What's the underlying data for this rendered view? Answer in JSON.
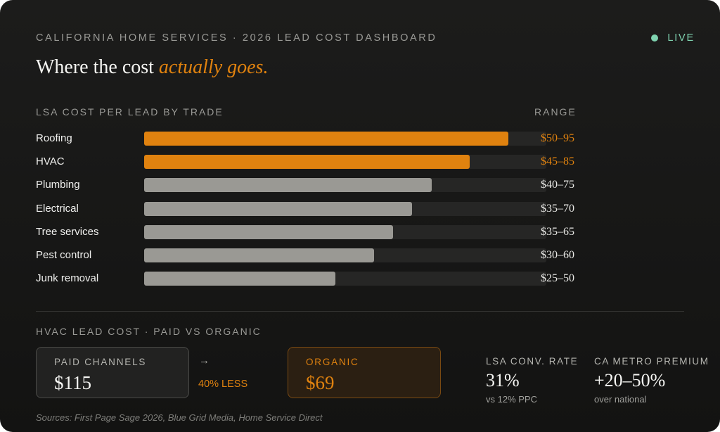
{
  "header": {
    "eyebrow": "CALIFORNIA HOME SERVICES · 2026 LEAD COST DASHBOARD",
    "live_label": "LIVE",
    "headline_plain": "Where the cost ",
    "headline_emphasis": "actually goes."
  },
  "colors": {
    "accent": "#e0820f",
    "neutral_bar": "#9a9994",
    "live": "#7fd3b0"
  },
  "chart_data": {
    "type": "bar",
    "orientation": "horizontal",
    "title": "LSA COST PER LEAD BY TRADE",
    "value_column_label": "RANGE",
    "categories": [
      "Roofing",
      "HVAC",
      "Plumbing",
      "Electrical",
      "Tree services",
      "Pest control",
      "Junk removal"
    ],
    "ranges": [
      "$50–95",
      "$45–85",
      "$40–75",
      "$35–70",
      "$35–65",
      "$30–60",
      "$25–50"
    ],
    "values": [
      95,
      85,
      75,
      70,
      65,
      60,
      50
    ],
    "highlighted": [
      true,
      true,
      false,
      false,
      false,
      false,
      false
    ],
    "xlim": [
      0,
      105
    ],
    "grid": false
  },
  "comparison": {
    "label": "HVAC LEAD COST · PAID VS ORGANIC",
    "paid_label": "PAID CHANNELS",
    "paid_value": "$115",
    "arrow": "→",
    "less_label": "40% LESS",
    "organic_label": "ORGANIC",
    "organic_value": "$69"
  },
  "stats": [
    {
      "label": "LSA CONV. RATE",
      "value": "31%",
      "sub": "vs 12% PPC"
    },
    {
      "label": "CA METRO PREMIUM",
      "value": "+20–50%",
      "sub": "over national"
    }
  ],
  "sources": "Sources: First Page Sage 2026, Blue Grid Media, Home Service Direct"
}
